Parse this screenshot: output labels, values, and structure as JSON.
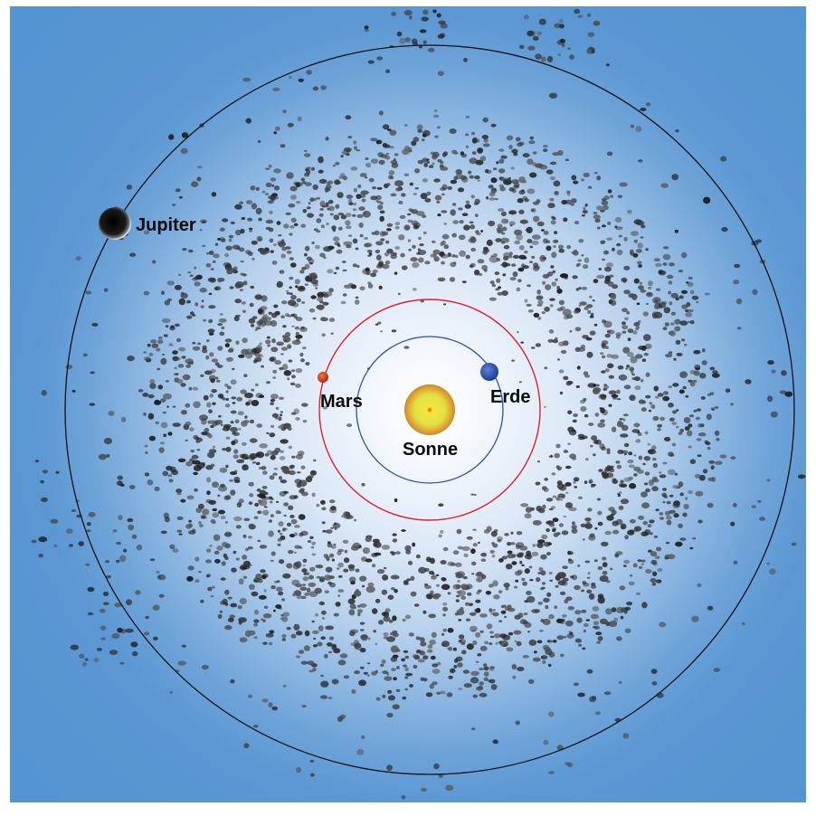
{
  "diagram": {
    "labels": {
      "sun": "Sonne",
      "earth": "Erde",
      "mars": "Mars",
      "jupiter": "Jupiter"
    },
    "colors": {
      "space_outer": "#5594d2",
      "space_inner": "#ffffff",
      "earth_orbit": "#2a4fb0",
      "mars_orbit": "#e0202a",
      "jupiter_orbit": "#111111",
      "sun_outer": "#e0a030",
      "sun_inner": "#e8e840",
      "earth": "#2850a8",
      "mars": "#d83a18",
      "jupiter": "#151515",
      "asteroid": "#2a2a2a"
    }
  }
}
